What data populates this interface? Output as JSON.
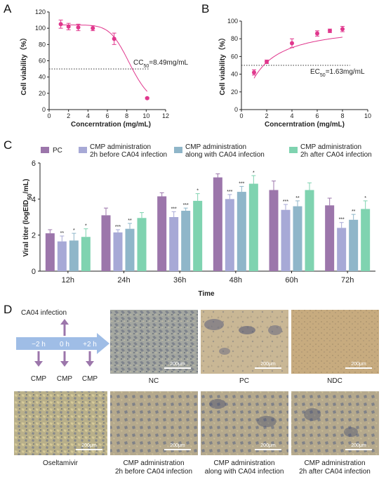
{
  "panels": {
    "a": "A",
    "b": "B",
    "c": "C",
    "d": "D"
  },
  "chart_data": [
    {
      "type": "scatter",
      "xlabel": "Concerntration (mg/mL)",
      "ylabel": "Cell viability（%）",
      "xlim": [
        0,
        12
      ],
      "ylim": [
        0,
        120
      ],
      "xticks": [
        0,
        2,
        4,
        6,
        8,
        10,
        12
      ],
      "yticks": [
        0,
        20,
        40,
        60,
        80,
        100,
        120
      ],
      "x": [
        1.2,
        2.0,
        3.0,
        4.5,
        6.7,
        10.1
      ],
      "y": [
        105,
        102,
        101,
        100,
        87,
        14
      ],
      "err": [
        5,
        4,
        4,
        3,
        7,
        1
      ],
      "fit_curve": true,
      "reference_line_y": 50,
      "annotation": {
        "prefix": "CC",
        "sub": "50",
        "suffix": "=8.49mg/mL"
      },
      "color": "#e0378d"
    },
    {
      "type": "scatter",
      "xlabel": "Concerntration (mg/mL)",
      "ylabel": "Cell viability（%）",
      "xlim": [
        0,
        10
      ],
      "ylim": [
        0,
        100
      ],
      "xticks": [
        0,
        2,
        4,
        6,
        8,
        10
      ],
      "yticks": [
        0,
        20,
        40,
        60,
        80,
        100
      ],
      "x": [
        1,
        2,
        4,
        6,
        7,
        8
      ],
      "y": [
        42,
        54,
        75,
        86,
        89,
        91
      ],
      "err": [
        3,
        2,
        5,
        3,
        2,
        3
      ],
      "fit_curve": true,
      "reference_line_y": 50,
      "annotation": {
        "prefix": "EC",
        "sub": "50",
        "suffix": "=1.63mg/mL"
      },
      "color": "#e0378d"
    },
    {
      "type": "bar",
      "xlabel": "Time",
      "ylabel_prefix": "Viral titer (logEID",
      "ylabel_sub": "50",
      "ylabel_suffix": "/mL)",
      "ylim": [
        0,
        6
      ],
      "yticks": [
        0,
        2,
        4,
        6
      ],
      "categories": [
        "12h",
        "24h",
        "36h",
        "48h",
        "60h",
        "72h"
      ],
      "series": [
        {
          "name": "PC",
          "color": "#9c76ab",
          "values": [
            2.1,
            3.1,
            4.15,
            5.2,
            4.5,
            3.65
          ],
          "err": [
            0.2,
            0.4,
            0.2,
            0.2,
            0.5,
            0.4
          ],
          "sig": [
            "",
            "",
            "",
            "",
            "",
            ""
          ]
        },
        {
          "name_line1": "CMP administration",
          "name_line2": "2h before CA04 infection",
          "color": "#a7a9d6",
          "values": [
            1.65,
            2.15,
            3.0,
            4.0,
            3.4,
            2.4
          ],
          "err": [
            0.3,
            0.15,
            0.3,
            0.25,
            0.3,
            0.3
          ],
          "sig": [
            "**",
            "***",
            "***",
            "***",
            "***",
            "***"
          ]
        },
        {
          "name_line1": "CMP administration",
          "name_line2": "along with CA04 infection",
          "color": "#8fb6c9",
          "values": [
            1.7,
            2.35,
            3.35,
            4.4,
            3.6,
            2.85
          ],
          "err": [
            0.4,
            0.3,
            0.15,
            0.3,
            0.3,
            0.3
          ],
          "sig": [
            "*",
            "**",
            "***",
            "***",
            "**",
            "**"
          ]
        },
        {
          "name_line1": "CMP administration",
          "name_line2": "2h after CA04 infection",
          "color": "#7fd3b0",
          "values": [
            1.9,
            2.95,
            3.9,
            4.85,
            4.5,
            3.45
          ],
          "err": [
            0.45,
            0.3,
            0.4,
            0.45,
            0.4,
            0.45
          ],
          "sig": [
            "*",
            "",
            "*",
            "*",
            "",
            "*"
          ]
        }
      ]
    }
  ],
  "panel_d": {
    "timeline": {
      "infection_label": "CA04 infection",
      "steps": [
        "−2 h",
        "0 h",
        "+2 h"
      ],
      "cmp_labels": [
        "CMP",
        "CMP",
        "CMP"
      ],
      "arrow_color": "#9fbde6",
      "marker_color": "#9c76ab"
    },
    "scale_bar": "200μm",
    "images": [
      {
        "caption1": "NC",
        "caption2": ""
      },
      {
        "caption1": "PC",
        "caption2": ""
      },
      {
        "caption1": "NDC",
        "caption2": ""
      },
      {
        "caption1": "Oseltamivir",
        "caption2": ""
      },
      {
        "caption1": "CMP administration",
        "caption2": "2h before CA04 infection"
      },
      {
        "caption1": "CMP administration",
        "caption2": "along with CA04 infection"
      },
      {
        "caption1": "CMP administration",
        "caption2": "2h after CA04 infection"
      }
    ]
  }
}
